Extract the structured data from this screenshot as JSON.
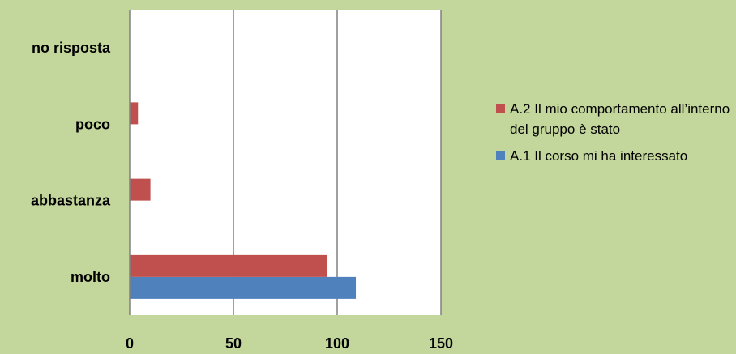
{
  "chart_data": {
    "type": "bar",
    "orientation": "horizontal",
    "categories": [
      "molto",
      "abbastanza",
      "poco",
      "no risposta"
    ],
    "series": [
      {
        "name": "A.1 Il corso mi ha interessato",
        "color": "#4f81bd",
        "values": [
          109,
          0,
          0,
          0
        ]
      },
      {
        "name": "A.2 Il mio comportamento all’interno del gruppo è stato",
        "color": "#c0504d",
        "values": [
          95,
          10,
          4,
          0
        ]
      }
    ],
    "xlim": [
      0,
      150
    ],
    "xticks": [
      "0",
      "50",
      "100",
      "150"
    ],
    "grid": true,
    "legend_position": "right",
    "plot_background": "#ffffff"
  }
}
